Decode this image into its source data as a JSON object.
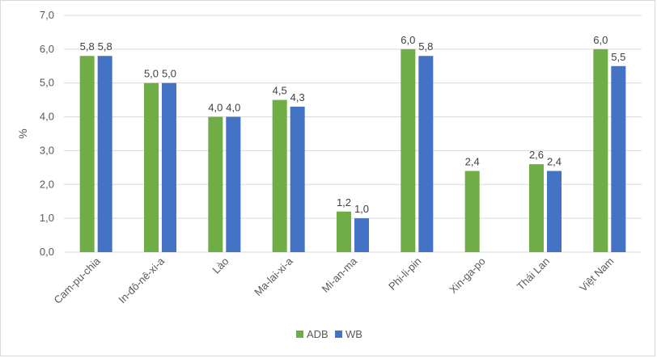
{
  "chart_data": {
    "type": "bar",
    "ylabel": "%",
    "ylim": [
      0,
      7
    ],
    "ytick_step": 1,
    "ytick_labels": [
      "0,0",
      "1,0",
      "2,0",
      "3,0",
      "4,0",
      "5,0",
      "6,0",
      "7,0"
    ],
    "grid": true,
    "legend_position": "bottom",
    "categories": [
      "Cam-pu-chia",
      "In-đô-nê-xi-a",
      "Lào",
      "Ma-lai-xi-a",
      "Mi-an-ma",
      "Phi-li-pin",
      "Xin-ga-po",
      "Thái Lan",
      "Việt Nam"
    ],
    "series": [
      {
        "name": "ADB",
        "color": "#70ad47",
        "values": [
          5.8,
          5.0,
          4.0,
          4.5,
          1.2,
          6.0,
          2.4,
          2.6,
          6.0
        ],
        "labels": [
          "5,8",
          "5,0",
          "4,0",
          "4,5",
          "1,2",
          "6,0",
          "2,4",
          "2,6",
          "6,0"
        ]
      },
      {
        "name": "WB",
        "color": "#4472c4",
        "values": [
          5.8,
          5.0,
          4.0,
          4.3,
          1.0,
          5.8,
          null,
          2.4,
          5.5
        ],
        "labels": [
          "5,8",
          "5,0",
          "4,0",
          "4,3",
          "1,0",
          "5,8",
          null,
          "2,4",
          "5,5"
        ]
      }
    ]
  }
}
